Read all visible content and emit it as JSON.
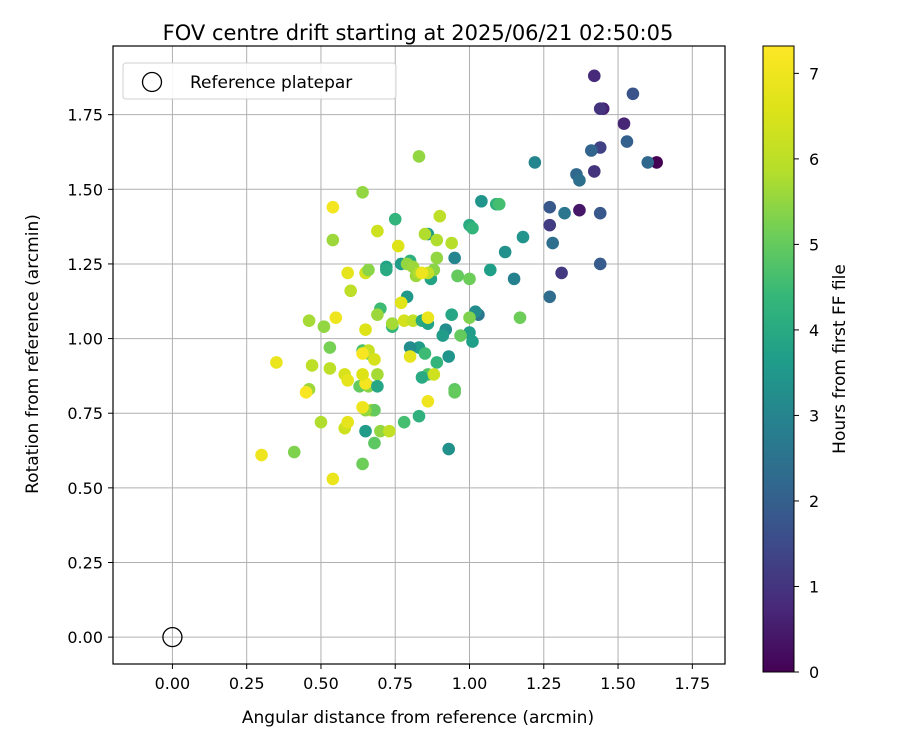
{
  "chart_data": {
    "type": "scatter",
    "title": "FOV centre drift starting at 2025/06/21 02:50:05",
    "xlabel": "Angular distance from reference (arcmin)",
    "ylabel": "Rotation from reference (arcmin)",
    "xlim": [
      -0.2,
      1.86
    ],
    "ylim": [
      -0.09,
      1.98
    ],
    "x_ticks": [
      0.0,
      0.25,
      0.5,
      0.75,
      1.0,
      1.25,
      1.5,
      1.75
    ],
    "x_tick_labels": [
      "0.00",
      "0.25",
      "0.50",
      "0.75",
      "1.00",
      "1.25",
      "1.50",
      "1.75"
    ],
    "y_ticks": [
      0.0,
      0.25,
      0.5,
      0.75,
      1.0,
      1.25,
      1.5,
      1.75
    ],
    "y_tick_labels": [
      "0.00",
      "0.25",
      "0.50",
      "0.75",
      "1.00",
      "1.25",
      "1.50",
      "1.75"
    ],
    "grid": true,
    "legend": {
      "position": "top-left",
      "entries": [
        "Reference platepar"
      ]
    },
    "reference_point": {
      "name": "Reference platepar",
      "x": 0.0,
      "y": 0.0
    },
    "colorbar": {
      "label": "Hours from first FF file",
      "colormap": "viridis",
      "range": [
        0,
        7.32
      ],
      "ticks": [
        0,
        1,
        2,
        3,
        4,
        5,
        6,
        7
      ],
      "tick_labels": [
        "0",
        "1",
        "2",
        "3",
        "4",
        "5",
        "6",
        "7"
      ]
    },
    "points": [
      [
        1.63,
        1.59,
        0.0
      ],
      [
        1.42,
        1.88,
        0.8
      ],
      [
        1.45,
        1.77,
        0.6
      ],
      [
        1.44,
        1.77,
        1.0
      ],
      [
        1.52,
        1.72,
        0.7
      ],
      [
        1.37,
        1.43,
        0.4
      ],
      [
        1.42,
        1.56,
        1.0
      ],
      [
        1.44,
        1.64,
        1.3
      ],
      [
        1.55,
        1.82,
        1.7
      ],
      [
        1.53,
        1.66,
        2.0
      ],
      [
        1.6,
        1.59,
        2.2
      ],
      [
        1.41,
        1.63,
        2.1
      ],
      [
        1.36,
        1.55,
        2.2
      ],
      [
        1.37,
        1.53,
        2.4
      ],
      [
        1.32,
        1.42,
        2.6
      ],
      [
        1.44,
        1.42,
        1.8
      ],
      [
        1.27,
        1.44,
        1.8
      ],
      [
        1.27,
        1.38,
        1.2
      ],
      [
        1.28,
        1.32,
        2.4
      ],
      [
        1.31,
        1.22,
        1.1
      ],
      [
        1.44,
        1.25,
        1.9
      ],
      [
        1.27,
        1.14,
        2.3
      ],
      [
        1.22,
        1.59,
        3.0
      ],
      [
        1.15,
        1.2,
        2.9
      ],
      [
        1.04,
        1.46,
        3.4
      ],
      [
        1.18,
        1.34,
        3.4
      ],
      [
        1.12,
        1.29,
        3.3
      ],
      [
        1.09,
        1.45,
        4.2
      ],
      [
        1.1,
        1.45,
        4.6
      ],
      [
        1.07,
        1.23,
        3.7
      ],
      [
        1.0,
        1.38,
        4.0
      ],
      [
        1.01,
        1.37,
        4.3
      ],
      [
        0.96,
        1.21,
        3.8
      ],
      [
        0.95,
        1.27,
        3.0
      ],
      [
        1.03,
        1.08,
        2.6
      ],
      [
        1.02,
        1.09,
        3.2
      ],
      [
        1.0,
        1.02,
        3.6
      ],
      [
        1.01,
        0.99,
        3.7
      ],
      [
        0.97,
        1.01,
        5.0
      ],
      [
        1.0,
        1.07,
        5.3
      ],
      [
        0.94,
        1.08,
        3.9
      ],
      [
        0.92,
        1.03,
        3.2
      ],
      [
        0.91,
        1.01,
        3.6
      ],
      [
        0.93,
        0.94,
        3.4
      ],
      [
        0.93,
        0.63,
        3.3
      ],
      [
        0.95,
        0.83,
        4.9
      ],
      [
        0.95,
        0.82,
        5.0
      ],
      [
        0.89,
        0.92,
        4.3
      ],
      [
        0.86,
        0.88,
        4.8
      ],
      [
        0.84,
        0.87,
        4.0
      ],
      [
        0.83,
        0.97,
        3.6
      ],
      [
        0.8,
        0.97,
        3.2
      ],
      [
        0.85,
        0.95,
        4.5
      ],
      [
        0.78,
        0.72,
        4.6
      ],
      [
        0.83,
        0.74,
        4.2
      ],
      [
        0.83,
        1.61,
        5.5
      ],
      [
        0.75,
        1.4,
        4.3
      ],
      [
        0.72,
        1.24,
        3.8
      ],
      [
        0.72,
        1.23,
        4.0
      ],
      [
        0.77,
        1.25,
        3.6
      ],
      [
        0.8,
        1.26,
        4.2
      ],
      [
        0.87,
        1.2,
        3.8
      ],
      [
        0.86,
        1.35,
        3.6
      ],
      [
        0.85,
        1.35,
        5.8
      ],
      [
        0.88,
        1.23,
        5.4
      ],
      [
        0.9,
        1.41,
        6.0
      ],
      [
        0.89,
        1.33,
        5.8
      ],
      [
        0.89,
        1.27,
        5.5
      ],
      [
        0.94,
        1.32,
        5.9
      ],
      [
        0.96,
        1.21,
        5.0
      ],
      [
        1.0,
        1.2,
        5.1
      ],
      [
        0.79,
        1.14,
        3.5
      ],
      [
        0.77,
        1.12,
        6.7
      ],
      [
        0.74,
        1.05,
        3.9
      ],
      [
        0.74,
        1.04,
        4.3
      ],
      [
        0.7,
        1.1,
        4.5
      ],
      [
        0.69,
        1.08,
        5.6
      ],
      [
        0.74,
        1.05,
        5.7
      ],
      [
        0.78,
        1.06,
        6.4
      ],
      [
        0.81,
        1.06,
        6.1
      ],
      [
        0.84,
        1.06,
        4.0
      ],
      [
        0.86,
        1.05,
        3.8
      ],
      [
        0.86,
        1.07,
        6.9
      ],
      [
        0.79,
        1.25,
        5.5
      ],
      [
        0.81,
        1.24,
        5.6
      ],
      [
        0.82,
        1.21,
        5.6
      ],
      [
        0.83,
        1.22,
        5.8
      ],
      [
        0.86,
        1.22,
        6.1
      ],
      [
        0.84,
        1.22,
        7.0
      ],
      [
        0.76,
        1.31,
        6.6
      ],
      [
        0.69,
        1.36,
        6.3
      ],
      [
        0.64,
        1.49,
        5.5
      ],
      [
        0.54,
        1.44,
        7.1
      ],
      [
        0.54,
        1.33,
        5.6
      ],
      [
        0.6,
        1.16,
        6.0
      ],
      [
        0.59,
        1.22,
        6.8
      ],
      [
        0.65,
        1.22,
        6.4
      ],
      [
        0.66,
        1.23,
        5.4
      ],
      [
        0.65,
        1.03,
        6.6
      ],
      [
        0.55,
        1.07,
        7.0
      ],
      [
        0.46,
        1.06,
        5.7
      ],
      [
        0.51,
        1.04,
        5.5
      ],
      [
        0.53,
        0.97,
        5.2
      ],
      [
        0.53,
        0.9,
        6.0
      ],
      [
        0.47,
        0.91,
        6.0
      ],
      [
        0.46,
        0.83,
        5.6
      ],
      [
        0.45,
        0.82,
        7.2
      ],
      [
        0.35,
        0.92,
        6.9
      ],
      [
        0.5,
        0.72,
        5.8
      ],
      [
        0.41,
        0.62,
        5.3
      ],
      [
        0.3,
        0.61,
        7.0
      ],
      [
        0.54,
        0.53,
        6.9
      ],
      [
        0.58,
        0.88,
        6.5
      ],
      [
        0.59,
        0.86,
        6.8
      ],
      [
        0.58,
        0.7,
        6.3
      ],
      [
        0.59,
        0.72,
        6.8
      ],
      [
        0.64,
        0.96,
        4.7
      ],
      [
        0.66,
        0.95,
        5.2
      ],
      [
        0.66,
        0.96,
        6.2
      ],
      [
        0.64,
        0.95,
        7.2
      ],
      [
        0.68,
        0.93,
        6.5
      ],
      [
        0.69,
        0.88,
        5.7
      ],
      [
        0.63,
        0.84,
        5.0
      ],
      [
        0.66,
        0.84,
        5.4
      ],
      [
        0.65,
        0.85,
        7.1
      ],
      [
        0.64,
        0.88,
        6.6
      ],
      [
        0.69,
        0.84,
        3.9
      ],
      [
        0.67,
        0.76,
        6.0
      ],
      [
        0.68,
        0.76,
        5.0
      ],
      [
        0.65,
        0.76,
        5.5
      ],
      [
        0.64,
        0.77,
        7.0
      ],
      [
        0.65,
        0.69,
        3.6
      ],
      [
        0.68,
        0.65,
        4.9
      ],
      [
        0.7,
        0.69,
        5.5
      ],
      [
        0.73,
        0.69,
        6.1
      ],
      [
        0.64,
        0.58,
        5.1
      ],
      [
        0.8,
        0.94,
        6.8
      ],
      [
        0.88,
        0.88,
        6.3
      ],
      [
        0.86,
        0.79,
        7.0
      ],
      [
        1.17,
        1.07,
        5.1
      ]
    ]
  }
}
